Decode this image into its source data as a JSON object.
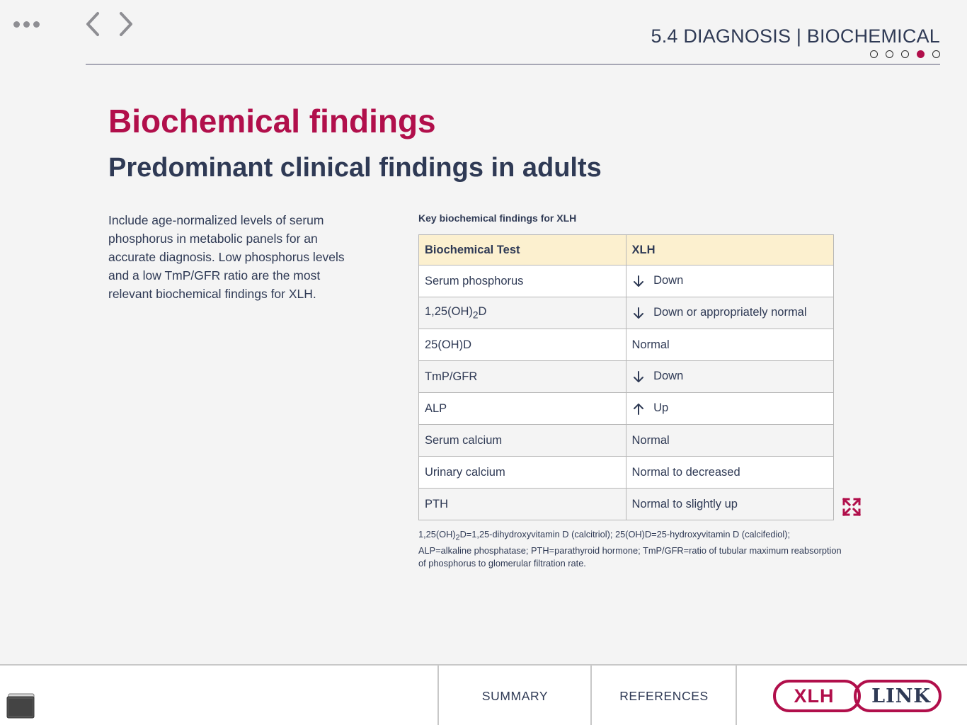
{
  "header": {
    "section_title": "5.4 DIAGNOSIS | BIOCHEMICAL",
    "pager": {
      "total": 5,
      "active_index": 4
    },
    "icons": [
      "menu-dots-icon",
      "chevron-left-icon",
      "chevron-right-icon"
    ]
  },
  "main": {
    "title": "Biochemical findings",
    "subtitle": "Predominant clinical findings in adults",
    "intro": "Include age-normalized levels of serum phosphorus in metabolic panels for an accurate diagnosis. Low phosphorus levels and a low TmP/GFR ratio are the most relevant biochemical findings for XLH."
  },
  "table": {
    "caption": "Key biochemical findings for XLH",
    "headers": [
      "Biochemical Test",
      "XLH"
    ],
    "rows": [
      {
        "test": "Serum phosphorus",
        "arrow": "down",
        "value": "Down"
      },
      {
        "test_pre": "1,25(OH)",
        "test_sub": "2",
        "test_post": "D",
        "arrow": "down",
        "value": "Down or appropriately normal"
      },
      {
        "test": "25(OH)D",
        "arrow": "",
        "value": "Normal"
      },
      {
        "test": "TmP/GFR",
        "arrow": "down",
        "value": "Down"
      },
      {
        "test": "ALP",
        "arrow": "up",
        "value": "Up"
      },
      {
        "test": "Serum calcium",
        "arrow": "",
        "value": "Normal"
      },
      {
        "test": "Urinary calcium",
        "arrow": "",
        "value": "Normal to decreased"
      },
      {
        "test": "PTH",
        "arrow": "",
        "value": "Normal to slightly up"
      }
    ]
  },
  "footnote": {
    "pre": "1,25(OH)",
    "sub": "2",
    "post": "D=1,25-dihydroxyvitamin D (calcitriol); 25(OH)D=25-hydroxyvitamin D (calcifediol); ALP=alkaline phosphatase; PTH=parathyroid hormone; TmP/GFR=ratio of tubular maximum reabsorption of phosphorus to glomerular filtration rate."
  },
  "footer": {
    "summary_label": "SUMMARY",
    "references_label": "REFERENCES",
    "logo_left": "XLH",
    "logo_right": "LINK"
  },
  "colors": {
    "accent": "#b10f4b",
    "text": "#2f3a55",
    "table_header_bg": "#fcf0cf",
    "background": "#f4f4f4"
  }
}
